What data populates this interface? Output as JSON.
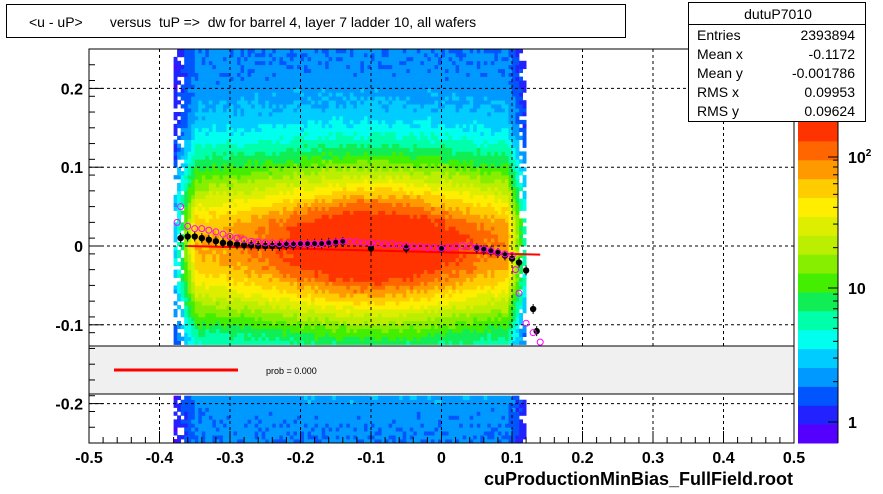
{
  "title": "<u - uP>       versus  tuP =>  dw for barrel 4, layer 7 ladder 10, all wafers",
  "footer": "cuProductionMinBias_FullField.root",
  "stats": {
    "name": "dutuP7010",
    "rows": [
      {
        "label": "Entries",
        "value": "2393894"
      },
      {
        "label": "Mean x",
        "value": "-0.1172"
      },
      {
        "label": "Mean y",
        "value": "-0.001786"
      },
      {
        "label": "RMS x",
        "value": "0.09953"
      },
      {
        "label": "RMS y",
        "value": "0.09624"
      }
    ]
  },
  "fit_legend": {
    "text": "prob = 0.000",
    "line_color": "#ff0000"
  },
  "chart_data": {
    "type": "heatmap",
    "title": "<u - uP>       versus  tuP =>  dw for barrel 4, layer 7 ladder 10, all wafers",
    "xlabel": "",
    "ylabel": "",
    "xlim": [
      -0.5,
      0.5
    ],
    "ylim": [
      -0.25,
      0.25
    ],
    "x_ticks": [
      "-0.5",
      "-0.4",
      "-0.3",
      "-0.2",
      "-0.1",
      "0",
      "0.1",
      "0.2",
      "0.3",
      "0.4",
      "0.5"
    ],
    "y_ticks": [
      "0.2",
      "0.1",
      "0",
      "-0.1",
      "-0.2"
    ],
    "grid": true,
    "populated_x_range": [
      -0.38,
      0.12
    ],
    "color_scale": {
      "type": "log",
      "labels": [
        "1",
        "10",
        "10^2"
      ],
      "colors": [
        "#5500ff",
        "#2222ff",
        "#0055ff",
        "#0099ff",
        "#00ccff",
        "#00ffee",
        "#00ffaa",
        "#11ee55",
        "#44ee00",
        "#88ee00",
        "#bbee00",
        "#ddee00",
        "#ffee00",
        "#ffcc00",
        "#ff9900",
        "#ff6600",
        "#ff3300"
      ]
    },
    "series": [
      {
        "name": "",
        "marker": "filled-circle",
        "color": "#000000",
        "points": [
          [
            -0.37,
            0.01
          ],
          [
            -0.36,
            0.012
          ],
          [
            -0.35,
            0.012
          ],
          [
            -0.34,
            0.01
          ],
          [
            -0.33,
            0.008
          ],
          [
            -0.32,
            0.006
          ],
          [
            -0.31,
            0.004
          ],
          [
            -0.3,
            0.003
          ],
          [
            -0.29,
            0.002
          ],
          [
            -0.28,
            0.001
          ],
          [
            -0.27,
            0.001
          ],
          [
            -0.26,
            0.0
          ],
          [
            -0.25,
            0.0
          ],
          [
            -0.24,
            0.0
          ],
          [
            -0.23,
            0.0
          ],
          [
            -0.22,
            0.001
          ],
          [
            -0.21,
            0.001
          ],
          [
            -0.2,
            0.002
          ],
          [
            -0.19,
            0.002
          ],
          [
            -0.18,
            0.003
          ],
          [
            -0.17,
            0.003
          ],
          [
            -0.16,
            0.004
          ],
          [
            -0.15,
            0.004
          ],
          [
            -0.14,
            0.005
          ],
          [
            -0.1,
            -0.003
          ],
          [
            -0.05,
            -0.003
          ],
          [
            0.0,
            -0.004
          ],
          [
            0.05,
            -0.003
          ],
          [
            0.06,
            -0.005
          ],
          [
            0.07,
            -0.007
          ],
          [
            0.08,
            -0.009
          ],
          [
            0.09,
            -0.012
          ],
          [
            0.1,
            -0.016
          ],
          [
            0.11,
            -0.021
          ],
          [
            0.12,
            -0.031
          ],
          [
            0.13,
            -0.08
          ],
          [
            0.135,
            -0.108
          ]
        ]
      },
      {
        "name": "",
        "marker": "open-circle",
        "color": "#ff00ff",
        "points": [
          [
            -0.375,
            0.03
          ],
          [
            -0.37,
            0.05
          ],
          [
            -0.36,
            0.025
          ],
          [
            -0.35,
            0.022
          ],
          [
            -0.34,
            0.022
          ],
          [
            -0.33,
            0.02
          ],
          [
            -0.32,
            0.018
          ],
          [
            -0.31,
            0.015
          ],
          [
            -0.3,
            0.012
          ],
          [
            -0.29,
            0.01
          ],
          [
            -0.28,
            0.008
          ],
          [
            -0.27,
            0.006
          ],
          [
            -0.26,
            0.005
          ],
          [
            -0.25,
            0.004
          ],
          [
            -0.24,
            0.004
          ],
          [
            -0.23,
            0.003
          ],
          [
            -0.22,
            0.003
          ],
          [
            -0.21,
            0.003
          ],
          [
            -0.2,
            0.003
          ],
          [
            -0.19,
            0.003
          ],
          [
            -0.18,
            0.003
          ],
          [
            -0.17,
            0.003
          ],
          [
            -0.16,
            0.004
          ],
          [
            -0.15,
            0.005
          ],
          [
            -0.14,
            0.006
          ],
          [
            -0.13,
            0.006
          ],
          [
            -0.12,
            0.005
          ],
          [
            -0.11,
            0.004
          ],
          [
            -0.1,
            0.004
          ],
          [
            -0.09,
            0.003
          ],
          [
            -0.08,
            0.002
          ],
          [
            -0.07,
            0.002
          ],
          [
            -0.06,
            0.001
          ],
          [
            -0.05,
            0.0
          ],
          [
            -0.04,
            -0.001
          ],
          [
            -0.03,
            -0.001
          ],
          [
            -0.02,
            -0.002
          ],
          [
            -0.01,
            -0.002
          ],
          [
            0.0,
            -0.003
          ],
          [
            0.01,
            -0.002
          ],
          [
            0.02,
            -0.001
          ],
          [
            0.03,
            0.0
          ],
          [
            0.04,
            0.0
          ],
          [
            0.05,
            -0.002
          ],
          [
            0.06,
            -0.004
          ],
          [
            0.07,
            -0.006
          ],
          [
            0.08,
            -0.008
          ],
          [
            0.09,
            -0.01
          ],
          [
            0.1,
            -0.012
          ],
          [
            0.105,
            -0.03
          ],
          [
            0.11,
            -0.06
          ],
          [
            0.12,
            -0.098
          ],
          [
            0.13,
            -0.11
          ],
          [
            0.14,
            -0.122
          ]
        ]
      }
    ],
    "fit_line": {
      "color": "#ff0000",
      "x": [
        -0.36,
        0.14
      ],
      "y": [
        0.0,
        -0.011
      ]
    }
  }
}
